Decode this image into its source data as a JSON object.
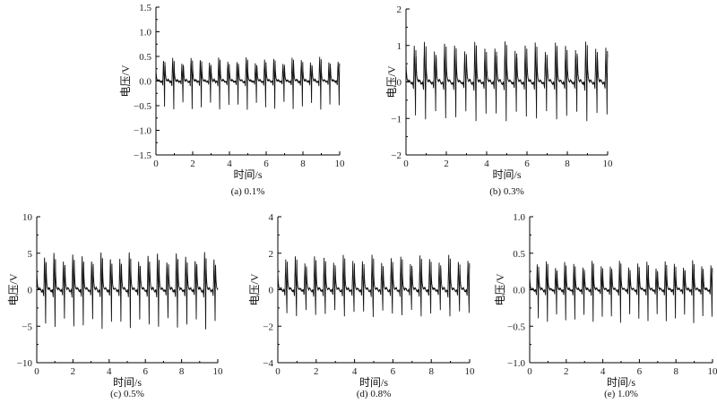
{
  "chart_data": [
    {
      "type": "line",
      "id": "a",
      "caption": "(a)  0.1%",
      "xlabel": "时间/s",
      "ylabel": "电压/V",
      "xlim": [
        0,
        10
      ],
      "ylim": [
        -1.5,
        1.5
      ],
      "xticks": [
        "0",
        "2",
        "4",
        "6",
        "8",
        "10"
      ],
      "yticks": [
        "1.5",
        "1.0",
        "0.5",
        "0.0",
        "−0.5",
        "−1.0",
        "−1.5"
      ],
      "series": [
        {
          "name": "voltage",
          "period_s": 0.5,
          "positive_peak": 0.45,
          "negative_peak": -0.55,
          "cycles": 20
        }
      ]
    },
    {
      "type": "line",
      "id": "b",
      "caption": "(b)  0.3%",
      "xlabel": "时间/s",
      "ylabel": "电压/V",
      "xlim": [
        0,
        10
      ],
      "ylim": [
        -2,
        2
      ],
      "xticks": [
        "0",
        "2",
        "4",
        "6",
        "8",
        "10"
      ],
      "yticks": [
        "2",
        "1",
        "0",
        "−1",
        "−2"
      ],
      "series": [
        {
          "name": "voltage",
          "period_s": 0.5,
          "positive_peak": 1.05,
          "negative_peak": -1.0,
          "cycles": 20
        }
      ]
    },
    {
      "type": "line",
      "id": "c",
      "caption": "(c)  0.5%",
      "xlabel": "时间/s",
      "ylabel": "电压/V",
      "xlim": [
        0,
        10
      ],
      "ylim": [
        -10,
        10
      ],
      "xticks": [
        "0",
        "2",
        "4",
        "6",
        "8",
        "10"
      ],
      "yticks": [
        "10",
        "5",
        "0",
        "−5",
        "−10"
      ],
      "series": [
        {
          "name": "voltage",
          "period_s": 0.52,
          "positive_peak": 5.0,
          "negative_peak": -5.2,
          "cycles": 19
        }
      ]
    },
    {
      "type": "line",
      "id": "d",
      "caption": "(d)  0.8%",
      "xlabel": "时间/s",
      "ylabel": "电压/V",
      "xlim": [
        0,
        10
      ],
      "ylim": [
        -4,
        4
      ],
      "xticks": [
        "0",
        "2",
        "4",
        "6",
        "8",
        "10"
      ],
      "yticks": [
        "4",
        "2",
        "0",
        "−2",
        "−4"
      ],
      "series": [
        {
          "name": "voltage",
          "period_s": 0.5,
          "positive_peak": 1.8,
          "negative_peak": -1.4,
          "cycles": 20
        }
      ]
    },
    {
      "type": "line",
      "id": "e",
      "caption": "(e)  1.0%",
      "xlabel": "时间/s",
      "ylabel": "电压/V",
      "xlim": [
        0,
        10
      ],
      "ylim": [
        -1,
        1
      ],
      "xticks": [
        "0",
        "2",
        "4",
        "6",
        "8",
        "10"
      ],
      "yticks": [
        "1.0",
        "0.5",
        "0.0",
        "−0.5",
        "−1.0"
      ],
      "series": [
        {
          "name": "voltage",
          "period_s": 0.5,
          "positive_peak": 0.37,
          "negative_peak": -0.42,
          "cycles": 20
        }
      ]
    }
  ]
}
